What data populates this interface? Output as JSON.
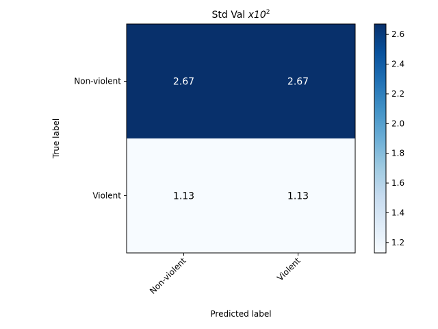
{
  "chart_data": {
    "type": "heatmap",
    "title": "Std Val ",
    "title_math_base": "x10",
    "title_math_exp": "2",
    "xlabel": "Predicted label",
    "ylabel": "True label",
    "x_categories": [
      "Non-violent",
      "Violent"
    ],
    "y_categories": [
      "Non-violent",
      "Violent"
    ],
    "values": [
      [
        2.67,
        2.67
      ],
      [
        1.13,
        1.13
      ]
    ],
    "cell_labels": [
      [
        "2.67",
        "2.67"
      ],
      [
        "1.13",
        "1.13"
      ]
    ],
    "colormap": "Blues",
    "colorbar": {
      "min": 1.13,
      "max": 2.67,
      "ticks": [
        1.2,
        1.4,
        1.6,
        1.8,
        2.0,
        2.2,
        2.4,
        2.6
      ],
      "tick_labels": [
        "1.2",
        "1.4",
        "1.6",
        "1.8",
        "2.0",
        "2.2",
        "2.4",
        "2.6"
      ]
    },
    "colors": {
      "high": "#08306b",
      "low": "#f7fbff",
      "high_text": "#ffffff",
      "low_text": "#000000"
    }
  }
}
